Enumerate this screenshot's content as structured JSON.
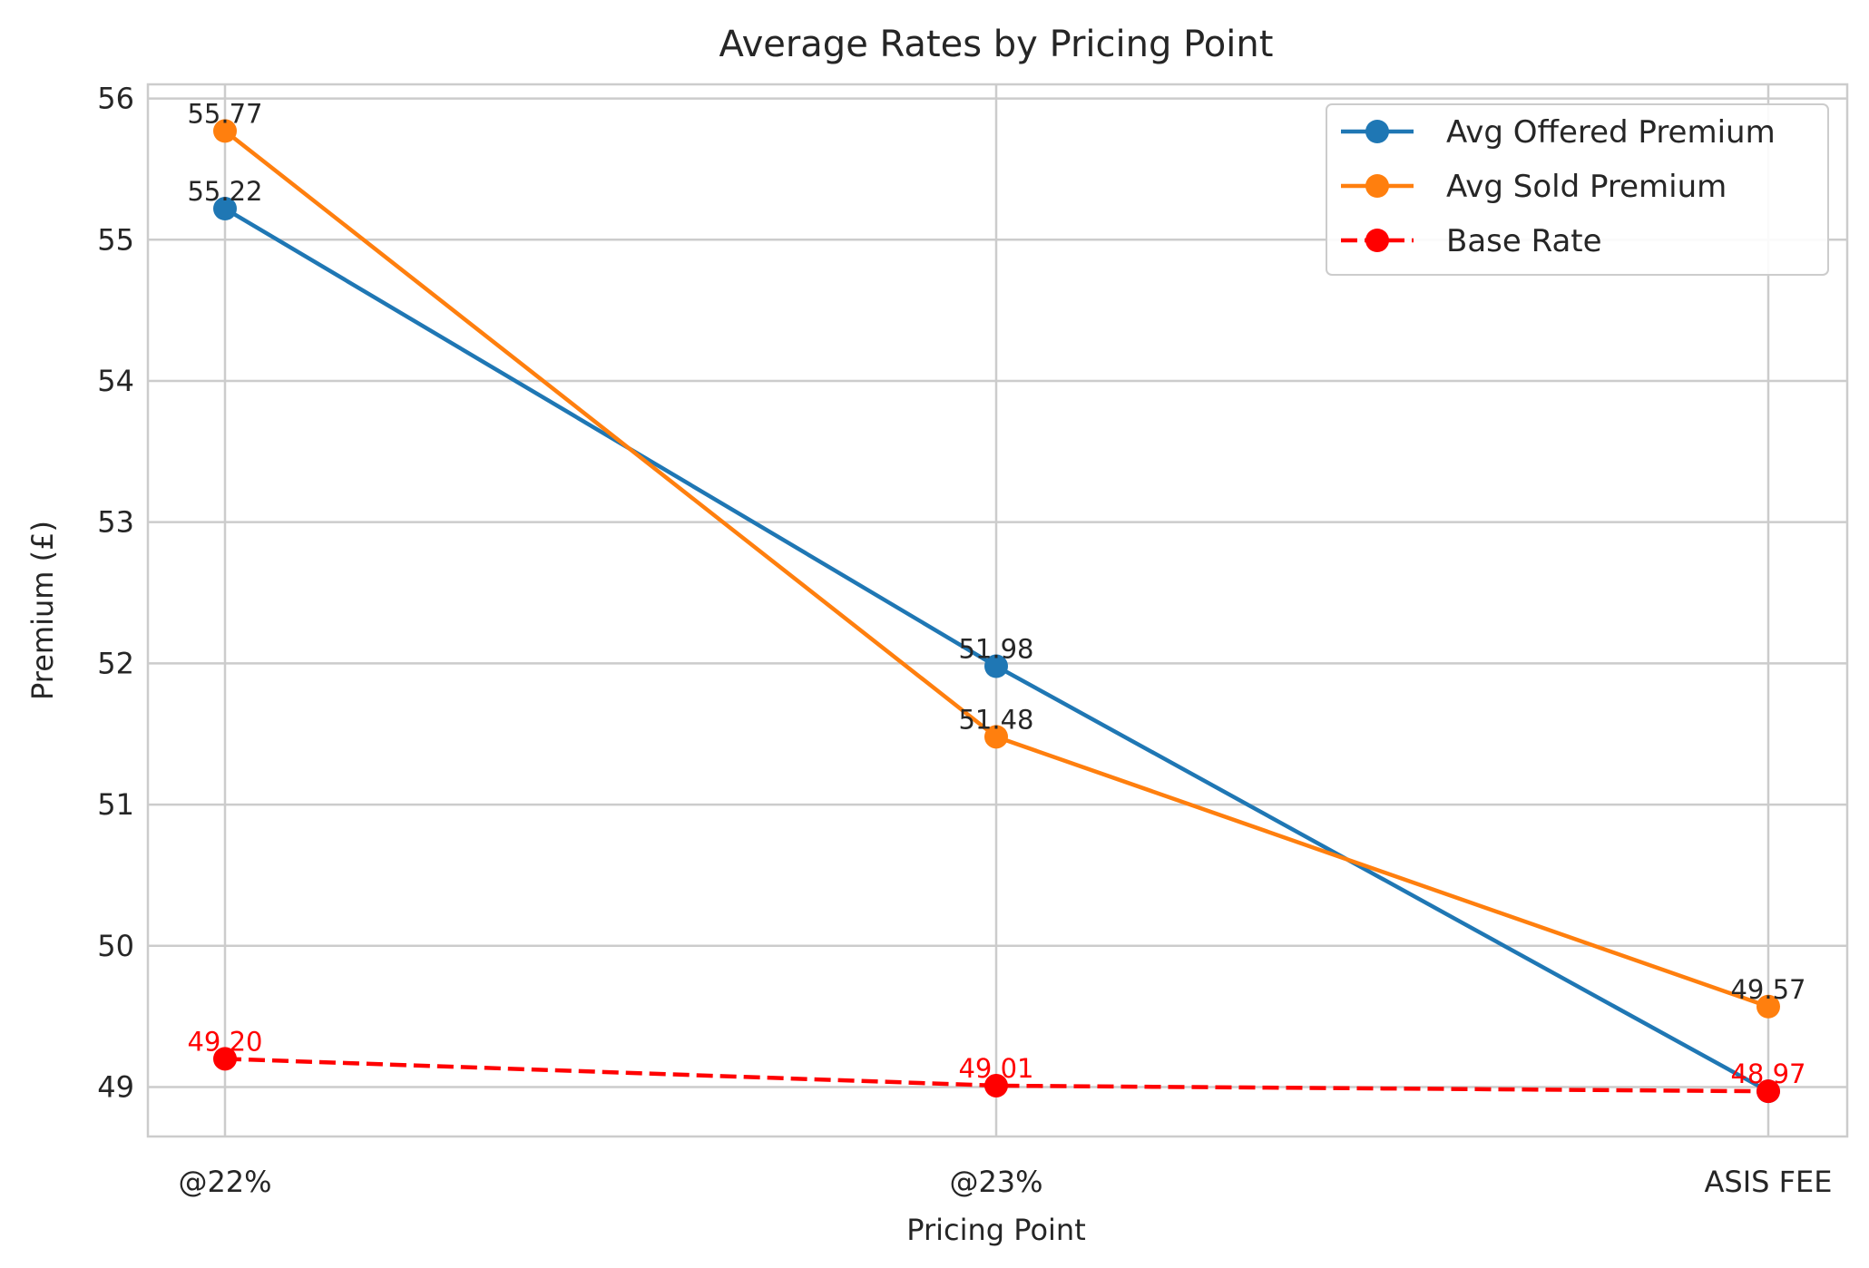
{
  "chart_data": {
    "type": "line",
    "title": "Average Rates by Pricing Point",
    "xlabel": "Pricing Point",
    "ylabel": "Premium (£)",
    "categories": [
      "@22%",
      "@23%",
      "ASIS FEE"
    ],
    "ylim": [
      48.65,
      56.1
    ],
    "yticks": [
      49,
      50,
      51,
      52,
      53,
      54,
      55,
      56
    ],
    "grid": true,
    "legend_position": "top-right",
    "series": [
      {
        "name": "Avg Offered Premium",
        "color": "#1f77b4",
        "dashed": false,
        "values": [
          55.22,
          51.98,
          48.97
        ],
        "labels": [
          "55.22",
          "51.98",
          ""
        ]
      },
      {
        "name": "Avg Sold Premium",
        "color": "#ff7f0e",
        "dashed": false,
        "values": [
          55.77,
          51.48,
          49.57
        ],
        "labels": [
          "55.77",
          "51.48",
          "49.57"
        ]
      },
      {
        "name": "Base Rate",
        "color": "#ff0000",
        "dashed": true,
        "values": [
          49.2,
          49.01,
          48.97
        ],
        "labels": [
          "49.20",
          "49.01",
          "48.97"
        ]
      }
    ]
  }
}
